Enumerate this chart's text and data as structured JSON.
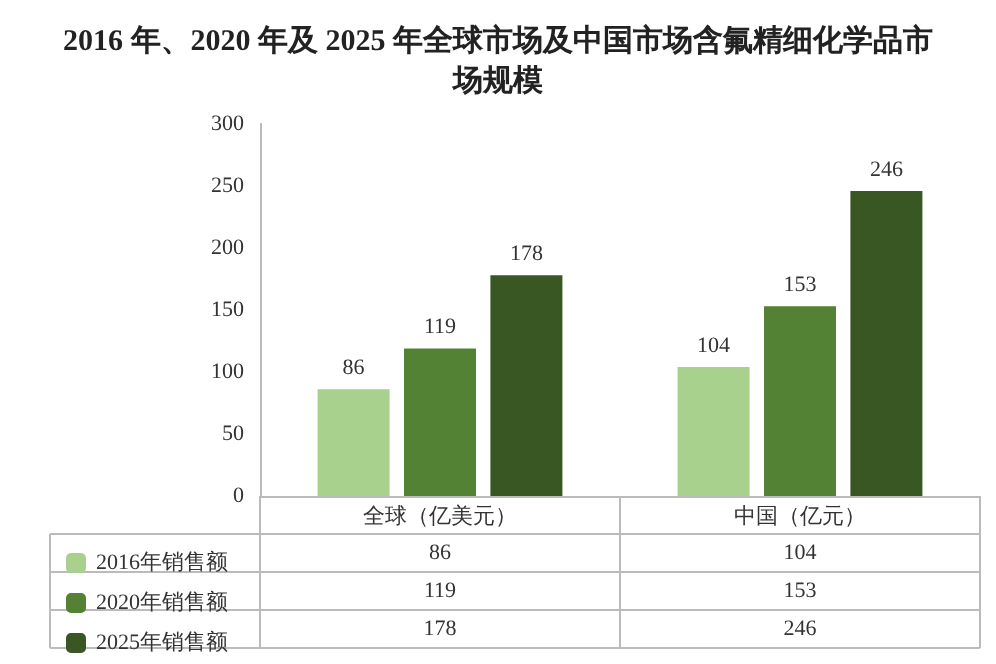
{
  "chart_data": {
    "type": "bar",
    "title": "2016 年、2020 年及 2025 年全球市场及中国市场含氟精细化学品市场规模",
    "categories": [
      "全球（亿美元）",
      "中国（亿元）"
    ],
    "series": [
      {
        "name": "2016年销售额",
        "color": "#a9d18e",
        "values": [
          86,
          104
        ],
        "value_labels": [
          "86",
          "104"
        ]
      },
      {
        "name": "2020年销售额",
        "color": "#548235",
        "values": [
          119,
          153
        ],
        "value_labels": [
          "119",
          "153"
        ]
      },
      {
        "name": "2025年销售额",
        "color": "#385723",
        "values": [
          178,
          246
        ],
        "value_labels": [
          "178",
          "246"
        ]
      }
    ],
    "ylim": [
      0,
      300
    ],
    "yticks": [
      0,
      50,
      100,
      150,
      200,
      250,
      300
    ],
    "grid": false,
    "legend": "bottom left"
  }
}
